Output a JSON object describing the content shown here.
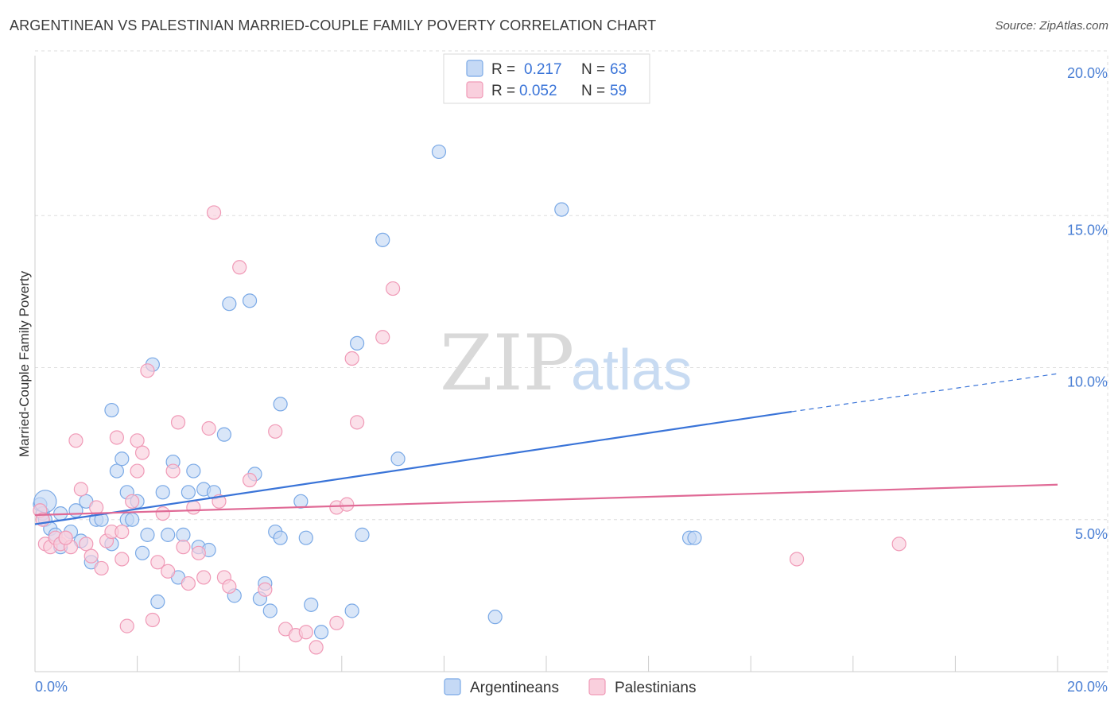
{
  "title": "ARGENTINEAN VS PALESTINIAN MARRIED-COUPLE FAMILY POVERTY CORRELATION CHART",
  "source": "Source: ZipAtlas.com",
  "watermark": {
    "zip": "ZIP",
    "atlas": "atlas"
  },
  "legend": {
    "series": [
      {
        "name": "Argentineans",
        "r_label": "R =",
        "r_value": "0.217",
        "n_label": "N =",
        "n_value": "63",
        "color": "#7aa9e6",
        "fill": "#c5d9f5"
      },
      {
        "name": "Palestinians",
        "r_label": "R =",
        "r_value": "0.052",
        "n_label": "N =",
        "n_value": "59",
        "color": "#f09ab7",
        "fill": "#f9cfdd"
      }
    ]
  },
  "chart_data": {
    "type": "scatter",
    "title": "ARGENTINEAN VS PALESTINIAN MARRIED-COUPLE FAMILY POVERTY CORRELATION CHART",
    "xlabel": "",
    "ylabel": "Married-Couple Family Poverty",
    "xlim": [
      0,
      20
    ],
    "ylim": [
      0,
      20
    ],
    "x_tick_labels": [
      "0.0%",
      "20.0%"
    ],
    "y_tick_labels": [
      "5.0%",
      "10.0%",
      "15.0%",
      "20.0%"
    ],
    "y_ticks": [
      5,
      10,
      15,
      20
    ],
    "grid": true,
    "series": [
      {
        "name": "Argentineans",
        "color": "#3a74d8",
        "trend": {
          "x0": 0.0,
          "y0": 4.85,
          "x1": 14.8,
          "y1": 8.55,
          "dash_to_x": 20.0,
          "dash_to_y": 9.8
        },
        "points": [
          [
            0.1,
            5.5
          ],
          [
            0.15,
            5.2
          ],
          [
            0.2,
            5.0
          ],
          [
            0.3,
            4.7
          ],
          [
            0.4,
            4.5
          ],
          [
            0.5,
            4.1
          ],
          [
            0.5,
            5.2
          ],
          [
            0.7,
            4.6
          ],
          [
            0.8,
            5.3
          ],
          [
            0.9,
            4.3
          ],
          [
            1.0,
            5.6
          ],
          [
            1.1,
            3.6
          ],
          [
            1.2,
            5.0
          ],
          [
            1.3,
            5.0
          ],
          [
            1.5,
            8.6
          ],
          [
            1.5,
            4.2
          ],
          [
            1.6,
            6.6
          ],
          [
            1.7,
            7.0
          ],
          [
            1.8,
            5.9
          ],
          [
            1.8,
            5.0
          ],
          [
            1.9,
            5.0
          ],
          [
            2.0,
            5.6
          ],
          [
            2.1,
            3.9
          ],
          [
            2.2,
            4.5
          ],
          [
            2.3,
            10.1
          ],
          [
            2.4,
            2.3
          ],
          [
            2.5,
            5.9
          ],
          [
            2.6,
            4.5
          ],
          [
            2.7,
            6.9
          ],
          [
            2.8,
            3.1
          ],
          [
            2.9,
            4.5
          ],
          [
            3.0,
            5.9
          ],
          [
            3.1,
            6.6
          ],
          [
            3.2,
            4.1
          ],
          [
            3.3,
            6.0
          ],
          [
            3.4,
            4.0
          ],
          [
            3.5,
            5.9
          ],
          [
            3.7,
            7.8
          ],
          [
            3.8,
            12.1
          ],
          [
            3.9,
            2.5
          ],
          [
            4.2,
            12.2
          ],
          [
            4.3,
            6.5
          ],
          [
            4.4,
            2.4
          ],
          [
            4.5,
            2.9
          ],
          [
            4.6,
            2.0
          ],
          [
            4.7,
            4.6
          ],
          [
            4.8,
            4.4
          ],
          [
            4.8,
            8.8
          ],
          [
            5.2,
            5.6
          ],
          [
            5.3,
            4.4
          ],
          [
            5.4,
            2.2
          ],
          [
            5.6,
            1.3
          ],
          [
            6.2,
            2.0
          ],
          [
            6.3,
            10.8
          ],
          [
            6.4,
            4.5
          ],
          [
            6.8,
            14.2
          ],
          [
            7.1,
            7.0
          ],
          [
            7.9,
            17.1
          ],
          [
            9.0,
            1.8
          ],
          [
            10.3,
            15.2
          ],
          [
            12.8,
            4.4
          ],
          [
            12.9,
            4.4
          ],
          [
            0.2,
            5.6
          ]
        ]
      },
      {
        "name": "Palestinians",
        "color": "#e06a96",
        "trend": {
          "x0": 0.0,
          "y0": 5.15,
          "x1": 20.0,
          "y1": 6.15
        },
        "points": [
          [
            0.1,
            5.3
          ],
          [
            0.2,
            4.2
          ],
          [
            0.3,
            4.1
          ],
          [
            0.4,
            4.4
          ],
          [
            0.5,
            4.2
          ],
          [
            0.6,
            4.4
          ],
          [
            0.7,
            4.1
          ],
          [
            0.8,
            7.6
          ],
          [
            0.9,
            6.0
          ],
          [
            1.0,
            4.2
          ],
          [
            1.1,
            3.8
          ],
          [
            1.2,
            5.4
          ],
          [
            1.3,
            3.4
          ],
          [
            1.4,
            4.3
          ],
          [
            1.5,
            4.6
          ],
          [
            1.6,
            7.7
          ],
          [
            1.7,
            4.6
          ],
          [
            1.7,
            3.7
          ],
          [
            1.8,
            1.5
          ],
          [
            1.9,
            5.6
          ],
          [
            2.0,
            6.6
          ],
          [
            2.0,
            7.6
          ],
          [
            2.1,
            7.2
          ],
          [
            2.2,
            9.9
          ],
          [
            2.3,
            1.7
          ],
          [
            2.4,
            3.6
          ],
          [
            2.5,
            5.2
          ],
          [
            2.6,
            3.3
          ],
          [
            2.7,
            6.6
          ],
          [
            2.8,
            8.2
          ],
          [
            2.9,
            4.1
          ],
          [
            3.0,
            2.9
          ],
          [
            3.1,
            5.4
          ],
          [
            3.2,
            3.9
          ],
          [
            3.3,
            3.1
          ],
          [
            3.4,
            8.0
          ],
          [
            3.5,
            15.1
          ],
          [
            3.6,
            5.6
          ],
          [
            3.7,
            3.1
          ],
          [
            3.8,
            2.8
          ],
          [
            4.0,
            13.3
          ],
          [
            4.2,
            6.3
          ],
          [
            4.5,
            2.7
          ],
          [
            4.7,
            7.9
          ],
          [
            4.9,
            1.4
          ],
          [
            5.1,
            1.2
          ],
          [
            5.3,
            1.3
          ],
          [
            5.5,
            0.8
          ],
          [
            5.9,
            1.6
          ],
          [
            5.9,
            5.4
          ],
          [
            6.1,
            5.5
          ],
          [
            6.2,
            10.3
          ],
          [
            6.3,
            8.2
          ],
          [
            6.8,
            11.0
          ],
          [
            7.0,
            12.6
          ],
          [
            14.9,
            3.7
          ],
          [
            16.9,
            4.2
          ],
          [
            0.15,
            5.0
          ],
          [
            0.6,
            4.4
          ]
        ]
      }
    ]
  }
}
